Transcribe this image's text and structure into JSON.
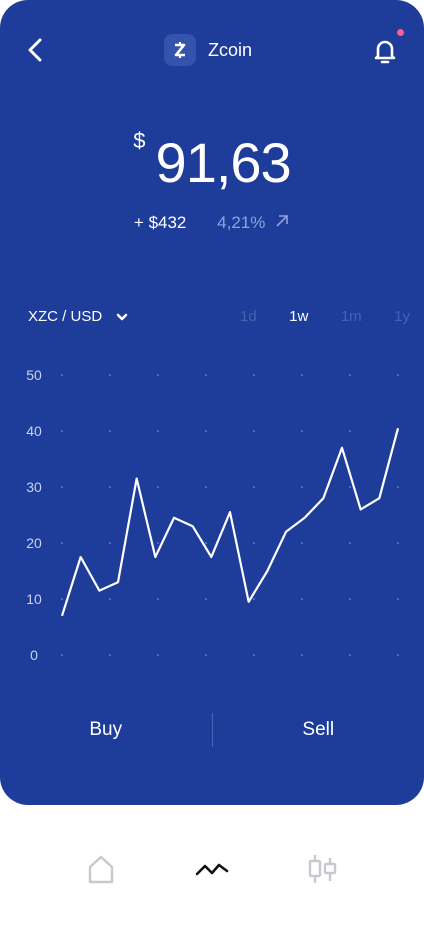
{
  "header": {
    "coin_name": "Zcoin",
    "coin_symbol_glyph": "z",
    "has_notification": true
  },
  "price": {
    "currency_symbol": "$",
    "value": "91,63",
    "change_abs": "+ $432",
    "change_pct": "4,21%"
  },
  "pair_selector": {
    "label": "XZC / USD"
  },
  "ranges": [
    {
      "label": "1d",
      "active": false
    },
    {
      "label": "1w",
      "active": true
    },
    {
      "label": "1m",
      "active": false
    },
    {
      "label": "1y",
      "active": false
    }
  ],
  "chart_data": {
    "type": "line",
    "title": "",
    "xlabel": "",
    "ylabel": "",
    "ylim": [
      0,
      50
    ],
    "yticks": [
      0,
      10,
      20,
      30,
      40,
      50
    ],
    "grid": "dotted",
    "series": [
      {
        "values": [
          7,
          17.5,
          11.5,
          13,
          31.5,
          17.5,
          24.5,
          23,
          17.5,
          25.5,
          9.5,
          15,
          22,
          24.5,
          28,
          37,
          26,
          28,
          40.5
        ]
      }
    ]
  },
  "actions": {
    "buy_label": "Buy",
    "sell_label": "Sell"
  },
  "tabs": [
    {
      "icon": "home-icon",
      "active": false
    },
    {
      "icon": "chart-line-icon",
      "active": true
    },
    {
      "icon": "candlestick-icon",
      "active": false
    }
  ],
  "colors": {
    "card_bg": "#1e3c99",
    "notification_dot": "#ff5d8f",
    "range_inactive": "#4861b0",
    "pct_text": "#8fa3dc"
  }
}
